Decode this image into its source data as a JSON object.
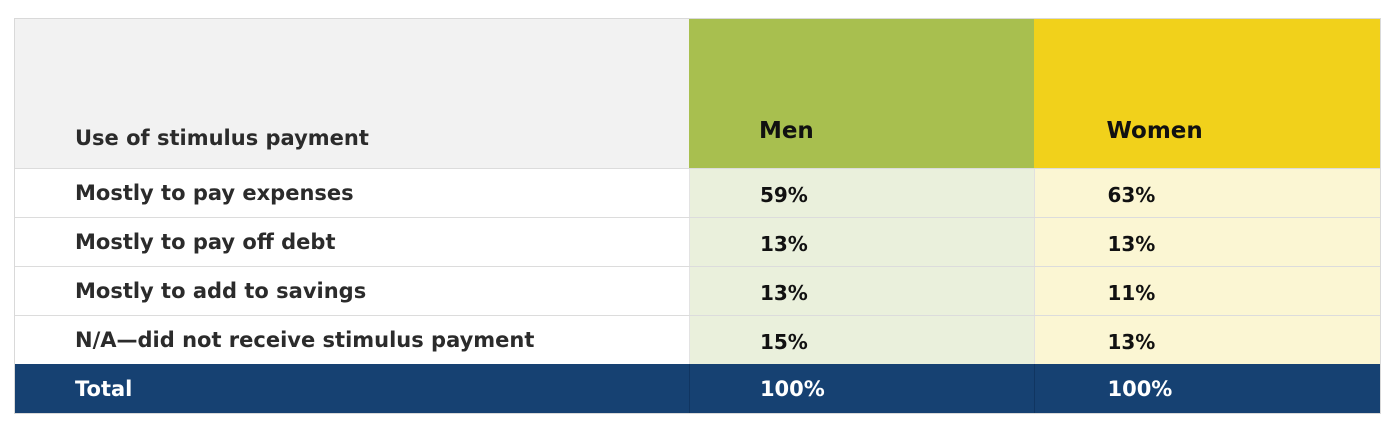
{
  "table": {
    "headers": {
      "label": "Use of stimulus payment",
      "men": "Men",
      "women": "Women"
    },
    "rows": [
      {
        "label": "Mostly to pay expenses",
        "men": "59%",
        "women": "63%"
      },
      {
        "label": "Mostly to pay off debt",
        "men": "13%",
        "women": "13%"
      },
      {
        "label": "Mostly to add to savings",
        "men": "13%",
        "women": "11%"
      },
      {
        "label": "N/A—did not receive stimulus payment",
        "men": "15%",
        "women": "13%"
      }
    ],
    "total": {
      "label": "Total",
      "men": "100%",
      "women": "100%"
    }
  },
  "colors": {
    "men_header": "#a8bf4f",
    "women_header": "#f1d11b",
    "men_cell": "#eaf0dc",
    "women_cell": "#fbf6d3",
    "total_bg": "#164172",
    "label_header_bg": "#f2f2f2"
  }
}
